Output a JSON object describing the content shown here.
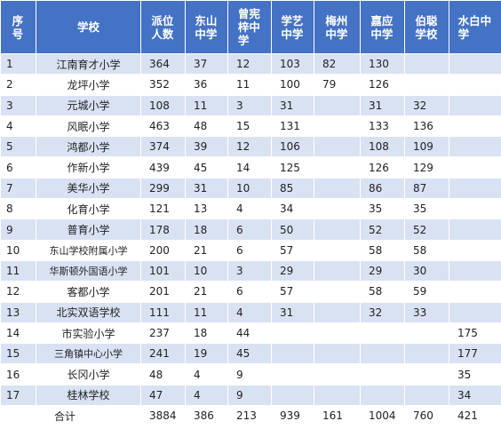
{
  "table": {
    "header": [
      "序号",
      "学校",
      "派位人数",
      "东山中学",
      "曾宪梓中学",
      "学艺中学",
      "梅州中学",
      "嘉应中学",
      "伯聪学校",
      "水白中学"
    ],
    "rows": [
      [
        1,
        "江南育才小学",
        364,
        37,
        12,
        103,
        82,
        130,
        null,
        null
      ],
      [
        2,
        "龙坪小学",
        352,
        36,
        11,
        100,
        79,
        126,
        null,
        null
      ],
      [
        3,
        "元城小学",
        108,
        11,
        3,
        31,
        null,
        31,
        32,
        null
      ],
      [
        4,
        "风眠小学",
        463,
        48,
        15,
        131,
        null,
        133,
        136,
        null
      ],
      [
        5,
        "鸿都小学",
        374,
        39,
        12,
        106,
        null,
        108,
        109,
        null
      ],
      [
        6,
        "作新小学",
        439,
        45,
        14,
        125,
        null,
        126,
        129,
        null
      ],
      [
        7,
        "美华小学",
        299,
        31,
        10,
        85,
        null,
        86,
        87,
        null
      ],
      [
        8,
        "化育小学",
        121,
        13,
        4,
        34,
        null,
        35,
        35,
        null
      ],
      [
        9,
        "普育小学",
        178,
        18,
        6,
        50,
        null,
        52,
        52,
        null
      ],
      [
        10,
        "东山学校附属小学",
        200,
        21,
        6,
        57,
        null,
        58,
        58,
        null
      ],
      [
        11,
        "华斯顿外国语小学",
        101,
        10,
        3,
        29,
        null,
        29,
        30,
        null
      ],
      [
        12,
        "客都小学",
        201,
        21,
        6,
        57,
        null,
        58,
        59,
        null
      ],
      [
        13,
        "北实双语学校",
        111,
        11,
        4,
        31,
        null,
        32,
        33,
        null
      ],
      [
        14,
        "市实验小学",
        237,
        18,
        44,
        null,
        null,
        null,
        null,
        175
      ],
      [
        15,
        "三角镇中心小学",
        241,
        19,
        45,
        null,
        null,
        null,
        null,
        177
      ],
      [
        16,
        "长冈小学",
        48,
        4,
        9,
        null,
        null,
        null,
        null,
        35
      ],
      [
        17,
        "桂林学校",
        47,
        4,
        9,
        null,
        null,
        null,
        null,
        34
      ]
    ],
    "total": {
      "label": "合计",
      "values": [
        3884,
        386,
        213,
        939,
        161,
        1004,
        760,
        421
      ]
    }
  }
}
